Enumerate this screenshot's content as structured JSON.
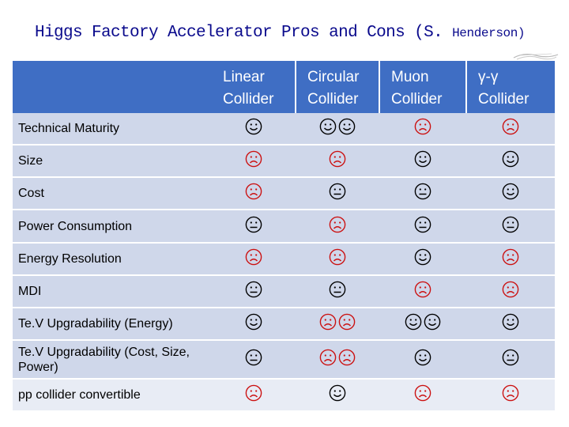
{
  "title": {
    "main": "Higgs Factory Accelerator Pros and Cons (S.",
    "author": "Henderson)"
  },
  "columns": [
    {
      "line1": "Linear",
      "line2": "Collider"
    },
    {
      "line1": "Circular",
      "line2": "Collider"
    },
    {
      "line1": "Muon",
      "line2": "Collider"
    },
    {
      "line1": "γ-γ",
      "line2": "Collider"
    }
  ],
  "colors": {
    "header": "#3f6ec4",
    "row_dark": "#cfd7ea",
    "row_light": "#e8ecf5",
    "title": "#0a0a8c",
    "happy": "#000000",
    "neutral": "#000000",
    "sad": "#cc1111"
  },
  "rows": [
    {
      "label": "Technical Maturity",
      "cells": [
        [
          "happy"
        ],
        [
          "happy",
          "happy"
        ],
        [
          "sad"
        ],
        [
          "sad"
        ]
      ]
    },
    {
      "label": "Size",
      "cells": [
        [
          "sad"
        ],
        [
          "sad"
        ],
        [
          "happy"
        ],
        [
          "happy"
        ]
      ]
    },
    {
      "label": "Cost",
      "cells": [
        [
          "sad"
        ],
        [
          "neutral"
        ],
        [
          "neutral"
        ],
        [
          "happy"
        ]
      ]
    },
    {
      "label": "Power Consumption",
      "cells": [
        [
          "neutral"
        ],
        [
          "sad"
        ],
        [
          "neutral"
        ],
        [
          "neutral"
        ]
      ]
    },
    {
      "label": "Energy Resolution",
      "cells": [
        [
          "sad"
        ],
        [
          "sad"
        ],
        [
          "happy"
        ],
        [
          "sad"
        ]
      ]
    },
    {
      "label": "MDI",
      "cells": [
        [
          "neutral"
        ],
        [
          "neutral"
        ],
        [
          "sad"
        ],
        [
          "sad"
        ]
      ]
    },
    {
      "label": "Te.V Upgradability (Energy)",
      "cells": [
        [
          "happy"
        ],
        [
          "sad",
          "sad"
        ],
        [
          "happy",
          "happy"
        ],
        [
          "happy"
        ]
      ]
    },
    {
      "label": "Te.V Upgradability (Cost, Size, Power)",
      "cells": [
        [
          "neutral"
        ],
        [
          "sad",
          "sad"
        ],
        [
          "happy"
        ],
        [
          "neutral"
        ]
      ]
    },
    {
      "label": "pp collider convertible",
      "cells": [
        [
          "sad"
        ],
        [
          "happy"
        ],
        [
          "sad"
        ],
        [
          "sad"
        ]
      ]
    }
  ]
}
